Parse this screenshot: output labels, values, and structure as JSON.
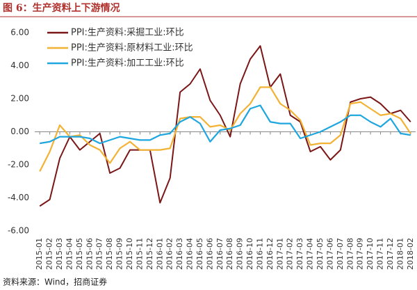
{
  "chart_data": {
    "type": "line",
    "title": "图 6：生产资料上下游情况",
    "categories": [
      "2015-01",
      "2015-02",
      "2015-03",
      "2015-04",
      "2015-05",
      "2015-06",
      "2015-07",
      "2015-08",
      "2015-09",
      "2015-10",
      "2015-11",
      "2015-12",
      "2016-01",
      "2016-02",
      "2016-03",
      "2016-04",
      "2016-05",
      "2016-06",
      "2016-07",
      "2016-08",
      "2016-09",
      "2016-10",
      "2016-11",
      "2016-12",
      "2017-01",
      "2017-02",
      "2017-03",
      "2017-04",
      "2017-05",
      "2017-06",
      "2017-07",
      "2017-08",
      "2017-09",
      "2017-10",
      "2017-11",
      "2017-12",
      "2018-01",
      "2018-02"
    ],
    "series": [
      {
        "name": "PPI:生产资料:采掘工业:环比",
        "color": "#7a1616",
        "values": [
          -4.5,
          -4.1,
          -1.6,
          -0.3,
          -1.1,
          -0.6,
          -0.1,
          -2.5,
          -2.2,
          -1.1,
          -1.1,
          -1.1,
          -4.3,
          -2.8,
          2.4,
          2.9,
          3.8,
          1.9,
          1.0,
          -0.3,
          2.9,
          4.4,
          5.2,
          2.7,
          3.5,
          1.0,
          0.6,
          -1.2,
          -0.9,
          -1.7,
          -1.1,
          1.8,
          2.0,
          2.1,
          1.7,
          1.1,
          1.3,
          0.6
        ]
      },
      {
        "name": "PPI:生产资料:原材料工业:环比",
        "color": "#f2b234",
        "values": [
          -2.4,
          -1.2,
          0.4,
          -0.3,
          -0.2,
          -0.8,
          -1.1,
          -1.9,
          -1.0,
          -0.6,
          -1.1,
          -1.1,
          -1.1,
          -1.0,
          0.8,
          0.9,
          0.9,
          0.3,
          0.4,
          0.1,
          1.1,
          1.7,
          2.7,
          2.7,
          1.7,
          1.3,
          0.7,
          -0.8,
          -0.7,
          -0.7,
          -0.2,
          1.7,
          1.8,
          1.4,
          1.0,
          1.1,
          0.8,
          -0.1
        ]
      },
      {
        "name": "PPI:生产资料:加工工业:环比",
        "color": "#1ea6df",
        "values": [
          -0.7,
          -0.6,
          -0.3,
          -0.3,
          -0.3,
          -0.4,
          -0.7,
          -0.5,
          -0.3,
          -0.4,
          -0.5,
          -0.5,
          -0.2,
          -0.1,
          0.6,
          0.9,
          0.5,
          -0.6,
          0.1,
          0.2,
          0.4,
          1.4,
          1.6,
          0.6,
          0.5,
          0.5,
          -0.4,
          -0.2,
          0.0,
          0.3,
          0.6,
          1.0,
          1.0,
          0.6,
          0.3,
          0.8,
          -0.1,
          -0.2
        ]
      }
    ],
    "ylim": [
      -6,
      6
    ],
    "yticks": [
      {
        "value": -6,
        "label": "-6.00"
      },
      {
        "value": -4,
        "label": "-4.00"
      },
      {
        "value": -2,
        "label": "-2.00"
      },
      {
        "value": 0,
        "label": "0.00"
      },
      {
        "value": 2,
        "label": "2.00"
      },
      {
        "value": 4,
        "label": "4.00"
      },
      {
        "value": 6,
        "label": "6.00"
      }
    ],
    "source": "资料来源：Wind，招商证券"
  }
}
